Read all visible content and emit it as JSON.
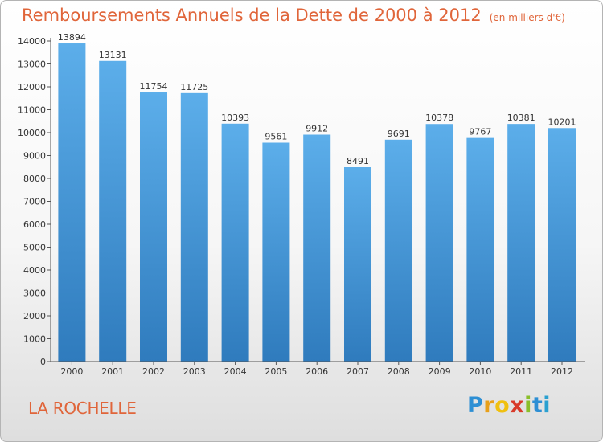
{
  "header": {
    "title": "Remboursements Annuels de la Dette de 2000 à 2012",
    "unit": "(en milliers d'€)"
  },
  "footer": {
    "city": "LA ROCHELLE",
    "logo_letters": [
      "P",
      "r",
      "o",
      "x",
      "i",
      "t",
      "i"
    ]
  },
  "colors": {
    "bar_top": "#5caeea",
    "bar_bottom": "#2f7bbd",
    "text": "#333333",
    "title": "#e0653a"
  },
  "chart_data": {
    "type": "bar",
    "title": "Remboursements Annuels de la Dette de 2000 à 2012",
    "categories": [
      "2000",
      "2001",
      "2002",
      "2003",
      "2004",
      "2005",
      "2006",
      "2007",
      "2008",
      "2009",
      "2010",
      "2011",
      "2012"
    ],
    "values": [
      13894,
      13131,
      11754,
      11725,
      10393,
      9561,
      9912,
      8491,
      9691,
      10378,
      9767,
      10381,
      10201
    ],
    "ylim": [
      0,
      14000
    ],
    "yticks": [
      0,
      1000,
      2000,
      3000,
      4000,
      5000,
      6000,
      7000,
      8000,
      9000,
      10000,
      11000,
      12000,
      13000,
      14000
    ],
    "grid": false,
    "legend": "none"
  }
}
